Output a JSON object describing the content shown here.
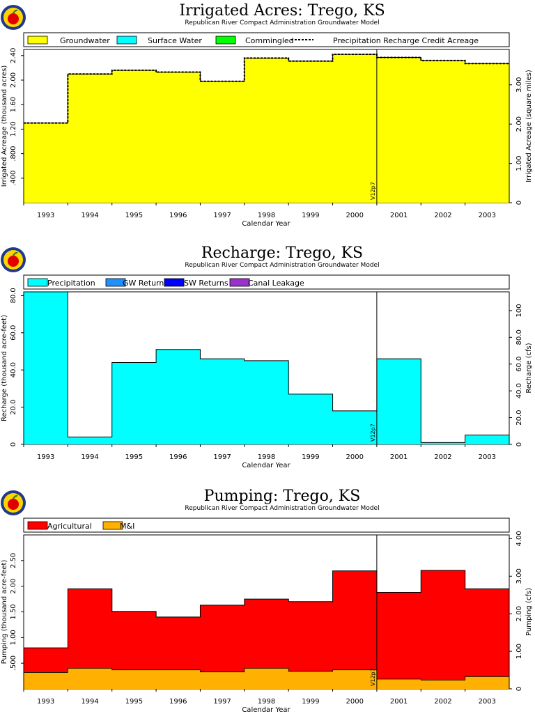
{
  "chart_data": [
    {
      "type": "area",
      "title": "Irrigated Acres: Trego, KS",
      "subtitle": "Republican River Compact Administration Groundwater Model",
      "xlabel": "Calendar Year",
      "ylabel": "Irrigated Acreage (thousand acres)",
      "ylabel_right": "Irrigated Acreage (square miles)",
      "categories": [
        "1993",
        "1994",
        "1995",
        "1996",
        "1997",
        "1998",
        "1999",
        "2000",
        "2001",
        "2002",
        "2003"
      ],
      "ylim": [
        0,
        2.5
      ],
      "yticks": [
        ".400",
        ".800",
        "1.20",
        "1.60",
        "2.00",
        "2.40"
      ],
      "yticks_right": [
        "0",
        "1.00",
        "2.00",
        "3.00"
      ],
      "series": [
        {
          "name": "Groundwater",
          "color": "#ffff00",
          "values": [
            1.3,
            2.1,
            2.16,
            2.13,
            1.98,
            2.36,
            2.31,
            2.42,
            2.37,
            2.32,
            2.27
          ]
        },
        {
          "name": "Surface Water",
          "color": "#00ffff",
          "values": [
            0,
            0,
            0,
            0,
            0,
            0,
            0,
            0,
            0,
            0,
            0
          ]
        },
        {
          "name": "Commingled",
          "color": "#00ff00",
          "values": [
            0,
            0,
            0,
            0,
            0,
            0,
            0,
            0,
            0,
            0,
            0
          ]
        },
        {
          "name": "Precipitation Recharge Credit Acreage",
          "style": "dashed",
          "values": [
            1.3,
            2.1,
            2.16,
            2.13,
            1.98,
            2.36,
            2.31,
            2.42,
            2.37,
            2.32,
            2.27
          ]
        }
      ],
      "marker_label": "V12p7"
    },
    {
      "type": "area",
      "title": "Recharge: Trego, KS",
      "subtitle": "Republican River Compact Administration Groundwater Model",
      "xlabel": "Calendar Year",
      "ylabel": "Recharge (thousand acre-feet)",
      "ylabel_right": "Recharge (cfs)",
      "categories": [
        "1993",
        "1994",
        "1995",
        "1996",
        "1997",
        "1998",
        "1999",
        "2000",
        "2001",
        "2002",
        "2003"
      ],
      "ylim": [
        0,
        82
      ],
      "yticks": [
        "0",
        "20.0",
        "40.0",
        "60.0",
        "80.0"
      ],
      "yticks_right": [
        "0",
        "20.0",
        "40.0",
        "60.0",
        "80.0",
        "100"
      ],
      "series": [
        {
          "name": "Precipitation",
          "color": "#00ffff",
          "values": [
            82,
            4,
            44,
            51,
            46,
            45,
            27,
            18,
            46,
            1,
            5
          ]
        },
        {
          "name": "GW Returns",
          "color": "#1e90ff",
          "values": [
            0,
            0,
            0,
            0,
            0,
            0,
            0,
            0,
            0,
            0,
            0
          ]
        },
        {
          "name": "SW Returns",
          "color": "#0000ff",
          "values": [
            0,
            0,
            0,
            0,
            0,
            0,
            0,
            0,
            0,
            0,
            0
          ]
        },
        {
          "name": "Canal Leakage",
          "color": "#9932cc",
          "values": [
            0,
            0,
            0,
            0,
            0,
            0,
            0,
            0,
            0,
            0,
            0
          ]
        }
      ],
      "marker_label": "V12p7"
    },
    {
      "type": "area",
      "title": "Pumping: Trego, KS",
      "subtitle": "Republican River Compact Administration Groundwater Model",
      "xlabel": "Calendar Year",
      "ylabel": "Pumping (thousand acre-feet)",
      "ylabel_right": "Pumping (cfs)",
      "categories": [
        "1993",
        "1994",
        "1995",
        "1996",
        "1997",
        "1998",
        "1999",
        "2000",
        "2001",
        "2002",
        "2003"
      ],
      "ylim": [
        0,
        3.0
      ],
      "yticks": [
        ".500",
        "1.00",
        "1.50",
        "2.00",
        "2.50"
      ],
      "yticks_right": [
        "0",
        "1.00",
        "2.00",
        "3.00",
        "4.00"
      ],
      "stacked": true,
      "series": [
        {
          "name": "Agricultural",
          "color": "#ff0000",
          "values": [
            0.48,
            1.55,
            1.14,
            1.03,
            1.3,
            1.35,
            1.36,
            1.93,
            1.69,
            2.14,
            1.71
          ]
        },
        {
          "name": "M&I",
          "color": "#ffb000",
          "values": [
            0.32,
            0.4,
            0.37,
            0.37,
            0.33,
            0.4,
            0.34,
            0.37,
            0.19,
            0.17,
            0.24
          ]
        }
      ],
      "marker_label": "V12p7"
    }
  ]
}
